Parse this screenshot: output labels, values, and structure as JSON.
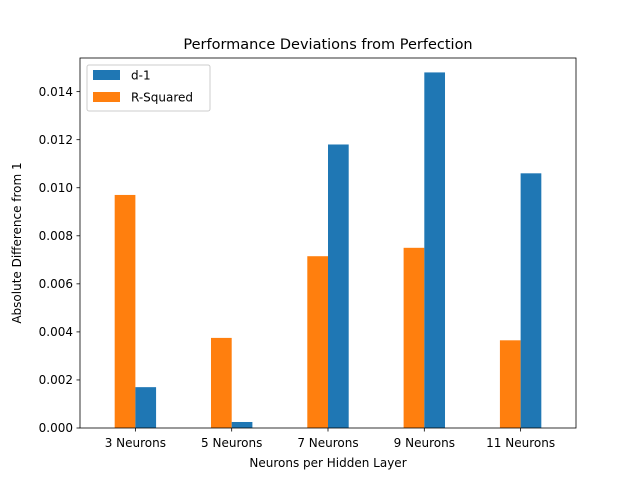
{
  "chart_data": {
    "type": "bar",
    "title": "Performance Deviations from Perfection",
    "xlabel": "Neurons per Hidden Layer",
    "ylabel": "Absolute Difference from 1",
    "categories": [
      "3 Neurons",
      "5 Neurons",
      "7 Neurons",
      "9 Neurons",
      "11 Neurons"
    ],
    "series": [
      {
        "name": "d-1",
        "color": "#1f77b4",
        "values": [
          0.0017,
          0.00025,
          0.0118,
          0.0148,
          0.0106
        ]
      },
      {
        "name": "R-Squared",
        "color": "#ff7f0e",
        "values": [
          0.0097,
          0.00375,
          0.00715,
          0.0075,
          0.00365
        ]
      }
    ],
    "bar_order": [
      "R-Squared",
      "d-1"
    ],
    "ylim": [
      0,
      0.0154
    ],
    "yticks": [
      "0.000",
      "0.002",
      "0.004",
      "0.006",
      "0.008",
      "0.010",
      "0.012",
      "0.014"
    ],
    "ytick_values": [
      0,
      0.002,
      0.004,
      0.006,
      0.008,
      0.01,
      0.012,
      0.014
    ],
    "legend_position": "top-left",
    "grid": false
  }
}
